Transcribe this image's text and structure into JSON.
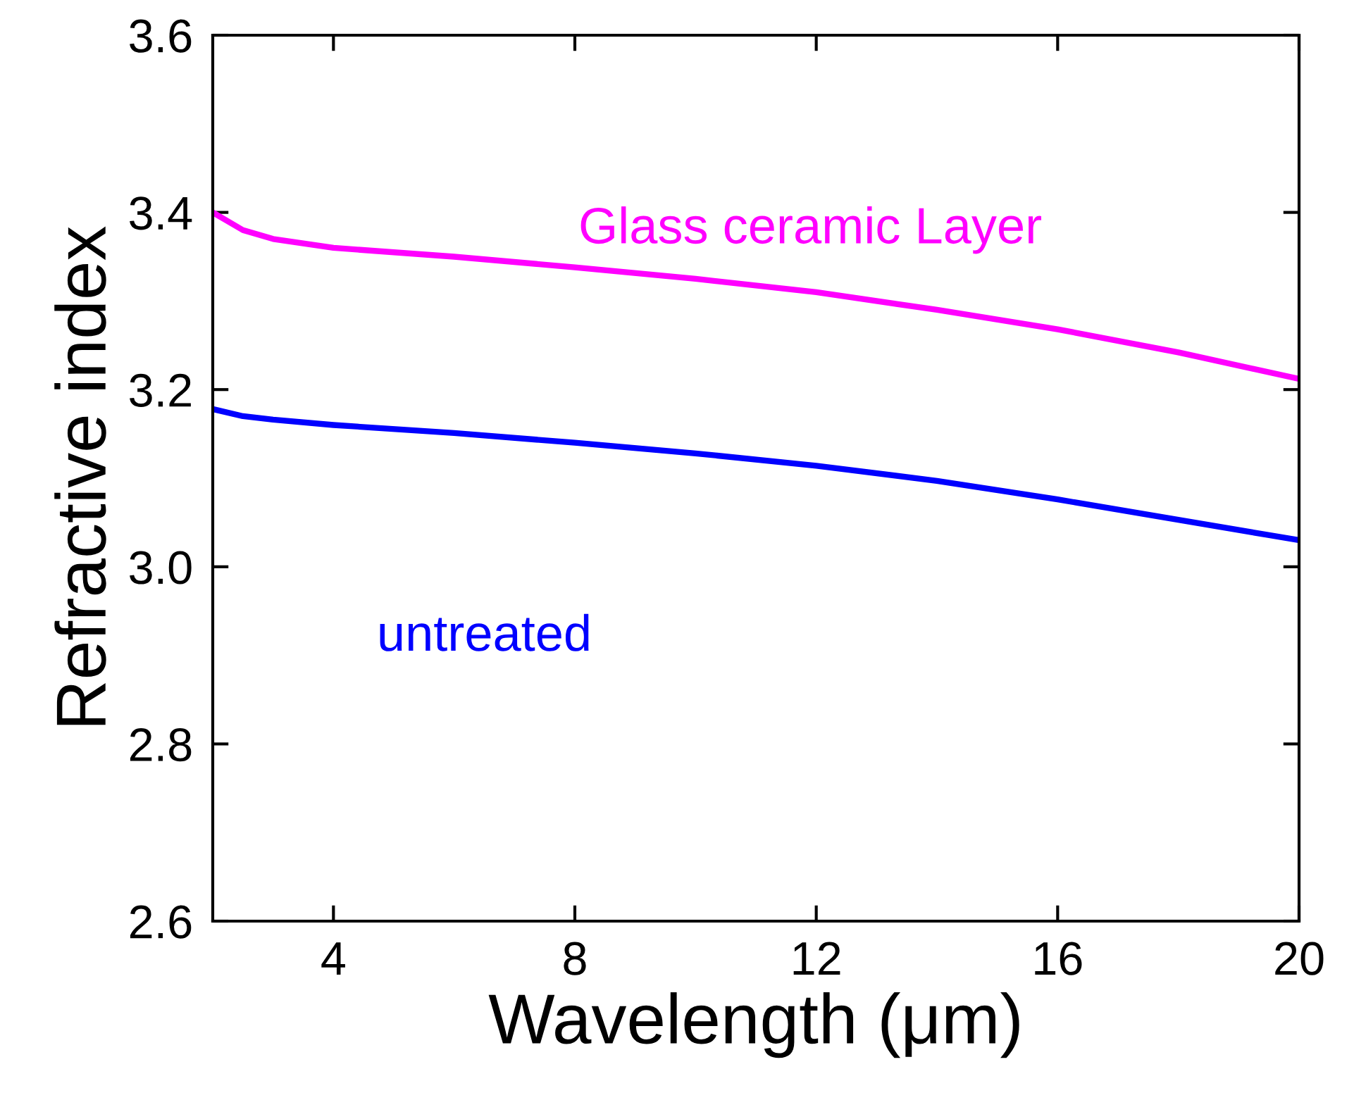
{
  "chart_data": {
    "type": "line",
    "xlabel": "Wavelength (μm)",
    "ylabel": "Refractive index",
    "xlim": [
      2,
      20
    ],
    "ylim": [
      2.6,
      3.6
    ],
    "xticks": [
      4,
      8,
      12,
      16,
      20
    ],
    "yticks": [
      {
        "value": 2.6,
        "label": "2.6"
      },
      {
        "value": 2.8,
        "label": "2.8"
      },
      {
        "value": 3.0,
        "label": "3.0"
      },
      {
        "value": 3.2,
        "label": "3.2"
      },
      {
        "value": 3.4,
        "label": "3.4"
      },
      {
        "value": 3.6,
        "label": "3.6"
      }
    ],
    "grid": false,
    "legend": false,
    "marker": "none",
    "line_style": "solid",
    "series": [
      {
        "name": "Glass ceramic Layer",
        "color": "#ff00ff",
        "x": [
          2,
          2.5,
          3,
          4,
          6,
          8,
          10,
          12,
          14,
          16,
          18,
          20
        ],
        "values": [
          3.4,
          3.38,
          3.37,
          3.36,
          3.35,
          3.338,
          3.325,
          3.31,
          3.29,
          3.268,
          3.242,
          3.212
        ]
      },
      {
        "name": "untreated",
        "color": "#0000ff",
        "x": [
          2,
          2.5,
          3,
          4,
          6,
          8,
          10,
          12,
          14,
          16,
          18,
          20
        ],
        "values": [
          3.178,
          3.17,
          3.166,
          3.16,
          3.151,
          3.14,
          3.128,
          3.114,
          3.097,
          3.076,
          3.053,
          3.03
        ]
      }
    ]
  }
}
